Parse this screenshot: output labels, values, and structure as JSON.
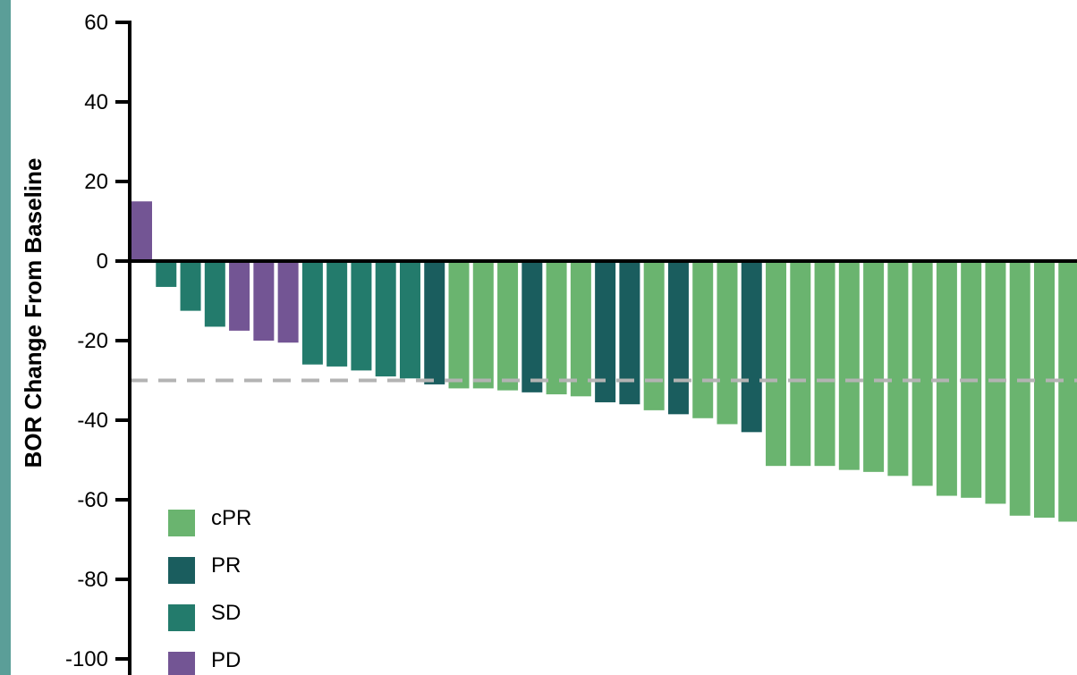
{
  "chart_data": {
    "type": "bar",
    "ylabel": "BOR Change From Baseline",
    "xlabel": "",
    "title": "",
    "ylim": [
      -100,
      60
    ],
    "yticks": [
      60,
      40,
      20,
      0,
      -20,
      -40,
      -60,
      -80,
      -100
    ],
    "reference_line": -30,
    "grid": false,
    "legend_position": "bottom-left",
    "legend": [
      {
        "name": "cPR",
        "color": "#6ab46f"
      },
      {
        "name": "PR",
        "color": "#1a5d5e"
      },
      {
        "name": "SD",
        "color": "#237b6c"
      },
      {
        "name": "PD",
        "color": "#735594"
      }
    ],
    "bars": [
      {
        "value": 15,
        "response": "PD"
      },
      {
        "value": -6.5,
        "response": "SD"
      },
      {
        "value": -12.5,
        "response": "SD"
      },
      {
        "value": -16.5,
        "response": "SD"
      },
      {
        "value": -17.5,
        "response": "PD"
      },
      {
        "value": -20,
        "response": "PD"
      },
      {
        "value": -20.5,
        "response": "PD"
      },
      {
        "value": -26,
        "response": "SD"
      },
      {
        "value": -26.5,
        "response": "SD"
      },
      {
        "value": -27.5,
        "response": "SD"
      },
      {
        "value": -29,
        "response": "SD"
      },
      {
        "value": -29.5,
        "response": "SD"
      },
      {
        "value": -31,
        "response": "PR"
      },
      {
        "value": -32,
        "response": "cPR"
      },
      {
        "value": -32,
        "response": "cPR"
      },
      {
        "value": -32.5,
        "response": "cPR"
      },
      {
        "value": -33,
        "response": "PR"
      },
      {
        "value": -33.5,
        "response": "cPR"
      },
      {
        "value": -34,
        "response": "cPR"
      },
      {
        "value": -35.5,
        "response": "PR"
      },
      {
        "value": -36,
        "response": "PR"
      },
      {
        "value": -37.5,
        "response": "cPR"
      },
      {
        "value": -38.5,
        "response": "PR"
      },
      {
        "value": -39.5,
        "response": "cPR"
      },
      {
        "value": -41,
        "response": "cPR"
      },
      {
        "value": -43,
        "response": "PR"
      },
      {
        "value": -51.5,
        "response": "cPR"
      },
      {
        "value": -51.5,
        "response": "cPR"
      },
      {
        "value": -51.5,
        "response": "cPR"
      },
      {
        "value": -52.5,
        "response": "cPR"
      },
      {
        "value": -53,
        "response": "cPR"
      },
      {
        "value": -54,
        "response": "cPR"
      },
      {
        "value": -56.5,
        "response": "cPR"
      },
      {
        "value": -59,
        "response": "cPR"
      },
      {
        "value": -59.5,
        "response": "cPR"
      },
      {
        "value": -61,
        "response": "cPR"
      },
      {
        "value": -64,
        "response": "cPR"
      },
      {
        "value": -64.5,
        "response": "cPR"
      },
      {
        "value": -65.5,
        "response": "cPR"
      }
    ]
  },
  "colors": {
    "axis": "#000000",
    "reference_line": "#b3b3b3",
    "edge_strip": "#5b9e98"
  }
}
